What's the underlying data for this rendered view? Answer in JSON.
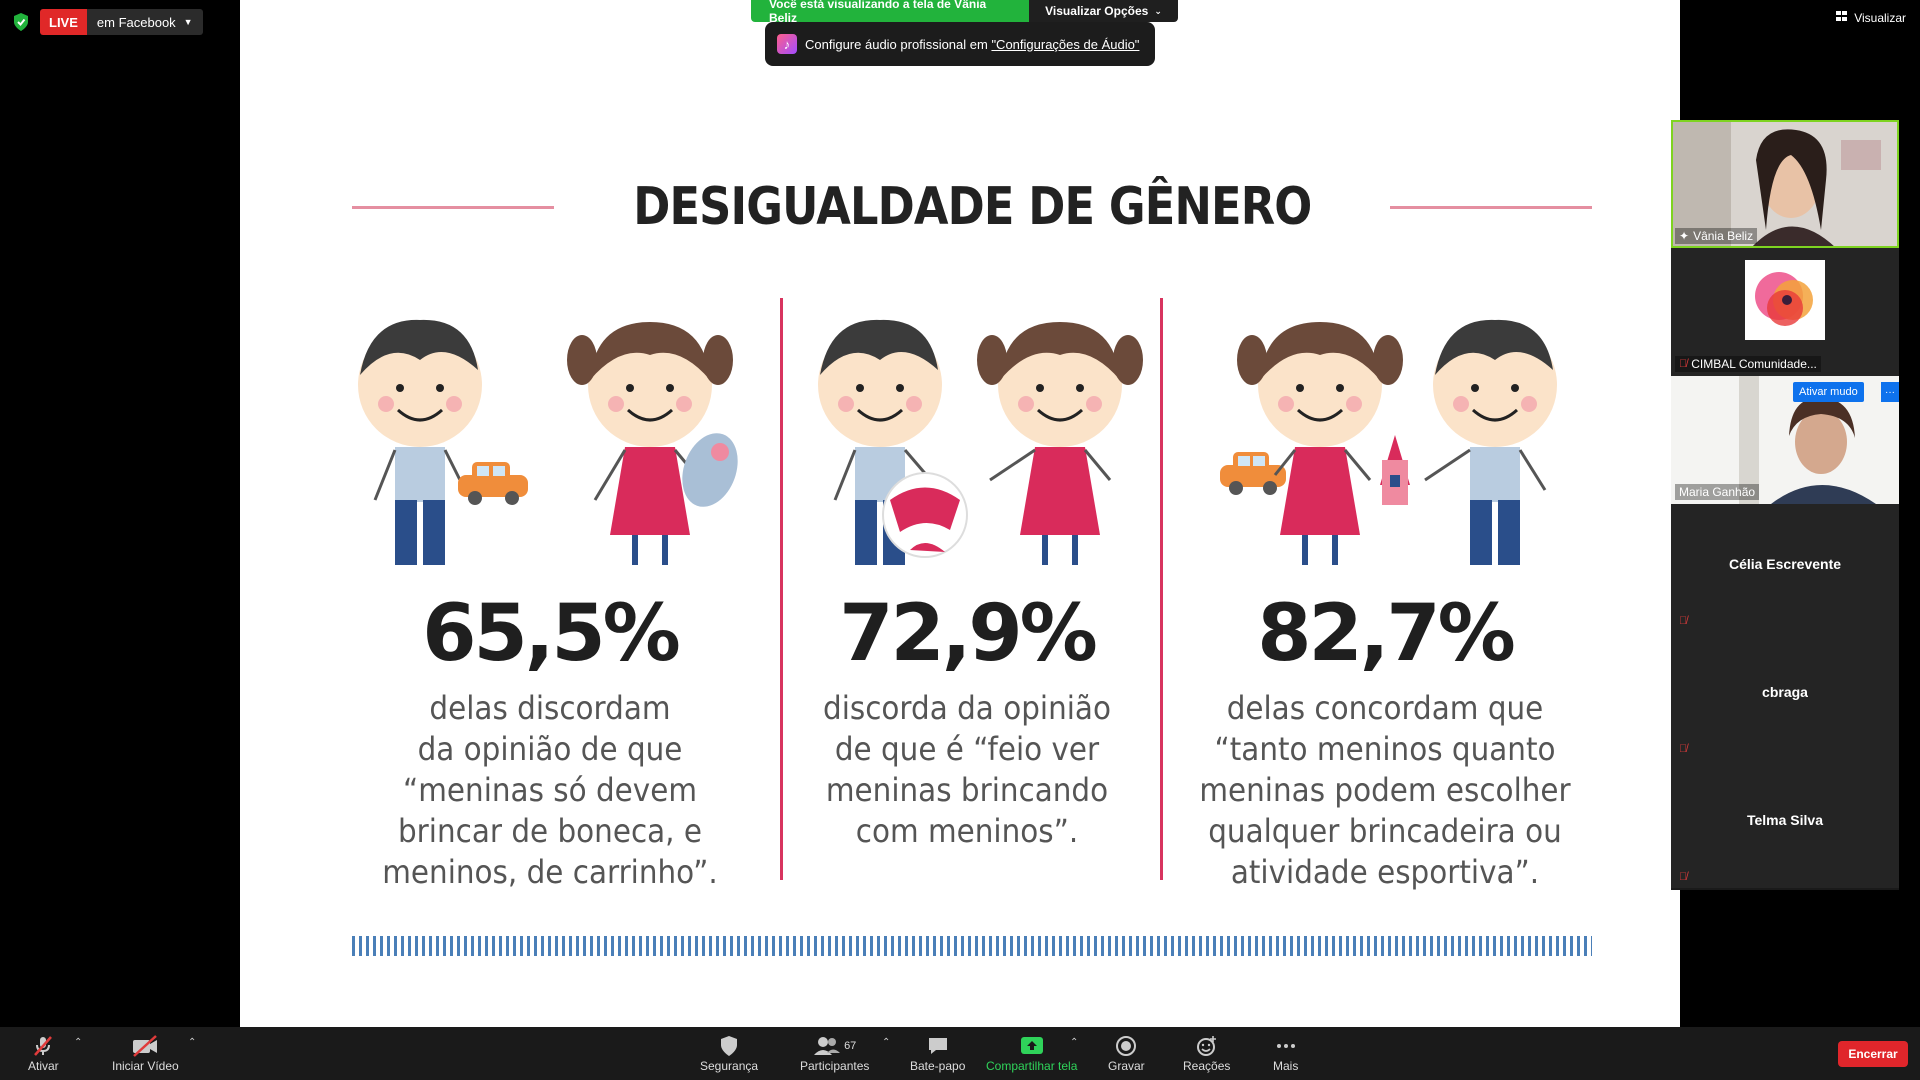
{
  "live": {
    "badge": "LIVE",
    "target": "em Facebook"
  },
  "view_button": "Visualizar",
  "share_banner": {
    "viewing": "Você está visualizando a tela de Vânia Beliz",
    "options": "Visualizar Opções"
  },
  "tooltip": {
    "text": "Configure áudio profissional em ",
    "link": "\"Configurações de Áudio\""
  },
  "slide": {
    "title": "DESIGUALDADE DE GÊNERO",
    "stats": [
      {
        "pct": "65,5%",
        "lines": [
          "delas discordam",
          "da opinião de que",
          "“meninas só devem",
          "brincar de boneca, e",
          "meninos, de carrinho”."
        ]
      },
      {
        "pct": "72,9%",
        "lines": [
          "discorda da opinião",
          "de que é “feio ver",
          "meninas brincando",
          "com meninos”."
        ]
      },
      {
        "pct": "82,7%",
        "lines": [
          "delas concordam que",
          "“tanto meninos quanto",
          "meninas podem escolher",
          "qualquer brincadeira ou",
          "atividade esportiva”."
        ]
      }
    ]
  },
  "participants": [
    {
      "name": "Vânia Beliz"
    },
    {
      "name": "CIMBAL Comunidade..."
    },
    {
      "name": "Maria Ganhão",
      "unmute": "Ativar mudo",
      "more": "···"
    },
    {
      "name": "Célia Escrevente"
    },
    {
      "name": "cbraga"
    },
    {
      "name": "Telma Silva"
    }
  ],
  "toolbar": {
    "unmute": "Ativar",
    "video": "Iniciar Vídeo",
    "security": "Segurança",
    "participants": "Participantes",
    "participants_count": "67",
    "chat": "Bate-papo",
    "share": "Compartilhar tela",
    "record": "Gravar",
    "reactions": "Reações",
    "more": "Mais",
    "end": "Encerrar"
  },
  "colors": {
    "live": "#e02828",
    "share_green": "#22b33c",
    "end": "#e0262b",
    "accent_pink": "#d8345f",
    "dash_blue": "#4a7fb8"
  }
}
